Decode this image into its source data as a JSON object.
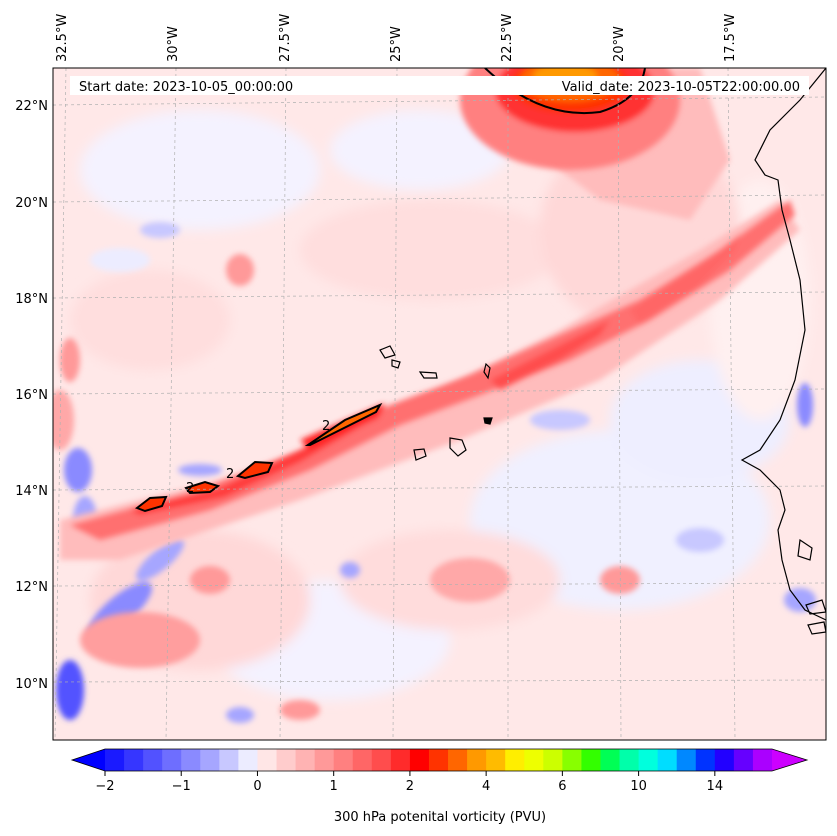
{
  "header": {
    "start_date": "Start date: 2023-10-05_00:00:00",
    "valid_date": "Valid_date: 2023-10-05T22:00:00.00"
  },
  "longitude_labels": [
    "32.5°W",
    "30°W",
    "27.5°W",
    "25°W",
    "22.5°W",
    "20°W",
    "17.5°W"
  ],
  "latitude_labels": [
    "22°N",
    "20°N",
    "18°N",
    "16°N",
    "14°N",
    "12°N",
    "10°N"
  ],
  "colorbar": {
    "title": "300 hPa potenital vorticity (PVU)",
    "tick_labels": [
      "−2",
      "−1",
      "0",
      "1",
      "2",
      "4",
      "6",
      "10",
      "14"
    ],
    "colors": [
      "#1a1aff",
      "#3636ff",
      "#5252ff",
      "#6e6eff",
      "#8a8aff",
      "#a6a6ff",
      "#c8c8ff",
      "#ececff",
      "#ffe6e6",
      "#ffcccc",
      "#ffb3b3",
      "#ff9999",
      "#ff8080",
      "#ff6666",
      "#ff4d4d",
      "#ff2b2b",
      "#ff0000",
      "#ff3300",
      "#ff6600",
      "#ff9900",
      "#ffbb00",
      "#ffee00",
      "#eeff00",
      "#ccff00",
      "#88ff00",
      "#33ff00",
      "#00ff55",
      "#00ffaa",
      "#00ffdd",
      "#00ddff",
      "#0088ff",
      "#0033ff",
      "#2200ff",
      "#6600ff",
      "#aa00ff"
    ],
    "under_color": "#0000ff",
    "over_color": "#cc00ff"
  },
  "contour_label": "2"
}
